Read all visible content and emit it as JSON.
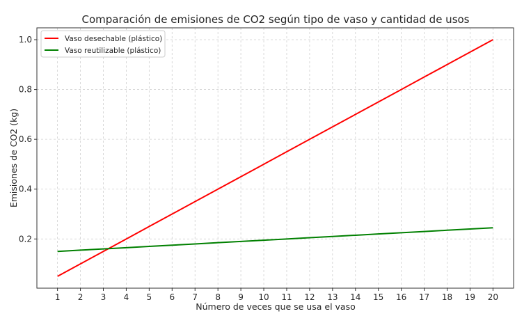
{
  "chart_data": {
    "type": "line",
    "title": "Comparación de emisiones de CO2 según tipo de vaso y cantidad de usos",
    "xlabel": "Número de veces que se usa el vaso",
    "ylabel": "Emisiones de CO2 (kg)",
    "x": [
      1,
      2,
      3,
      4,
      5,
      6,
      7,
      8,
      9,
      10,
      11,
      12,
      13,
      14,
      15,
      16,
      17,
      18,
      19,
      20
    ],
    "xlim": [
      0.1,
      20.9
    ],
    "ylim": [
      0.0025,
      1.0475
    ],
    "yticks": [
      0.2,
      0.4,
      0.6,
      0.8,
      1.0
    ],
    "ytick_labels": [
      "0.2",
      "0.4",
      "0.6",
      "0.8",
      "1.0"
    ],
    "grid": true,
    "legend_position": "top-left",
    "series": [
      {
        "name": "Vaso desechable (plástico)",
        "color": "#ff0000",
        "values": [
          0.05,
          0.1,
          0.15,
          0.2,
          0.25,
          0.3,
          0.35,
          0.4,
          0.45,
          0.5,
          0.55,
          0.6,
          0.65,
          0.7,
          0.75,
          0.8,
          0.85,
          0.9,
          0.95,
          1.0
        ]
      },
      {
        "name": "Vaso reutilizable (plástico)",
        "color": "#008000",
        "values": [
          0.15,
          0.155,
          0.16,
          0.165,
          0.17,
          0.175,
          0.18,
          0.185,
          0.19,
          0.195,
          0.2,
          0.205,
          0.21,
          0.215,
          0.22,
          0.225,
          0.23,
          0.235,
          0.24,
          0.245
        ]
      }
    ]
  }
}
